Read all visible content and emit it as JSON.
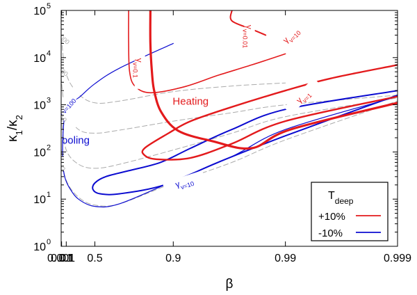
{
  "chart_data": {
    "type": "line",
    "title": "",
    "xlabel": "β",
    "ylabel": "κ1/κ2",
    "x_scale": "log(1-β)",
    "y_scale": "log",
    "xlim": [
      0.001,
      0.999
    ],
    "ylim": [
      1,
      100000
    ],
    "grid": false,
    "x_ticks": [
      {
        "value": 0.001,
        "label": "0.001"
      },
      {
        "value": 0.01,
        "label": "0.01"
      },
      {
        "value": 0.1,
        "label": "0.1"
      },
      {
        "value": 0.5,
        "label": "0.5"
      },
      {
        "value": 0.9,
        "label": "0.9"
      },
      {
        "value": 0.99,
        "label": "0.99"
      },
      {
        "value": 0.999,
        "label": "0.999"
      }
    ],
    "y_ticks": [
      {
        "value": 1,
        "mant": "10",
        "exp": "0"
      },
      {
        "value": 10,
        "mant": "10",
        "exp": "1"
      },
      {
        "value": 100,
        "mant": "10",
        "exp": "2"
      },
      {
        "value": 1000,
        "mant": "10",
        "exp": "3"
      },
      {
        "value": 10000,
        "mant": "10",
        "exp": "4"
      },
      {
        "value": 100000,
        "mant": "10",
        "exp": "5"
      }
    ],
    "legend": {
      "title": "T",
      "title_sub": "deep",
      "placement": "bottom-right",
      "entries": [
        {
          "label": "+10%",
          "color": "#e31a1c"
        },
        {
          "label": "-10%",
          "color": "#0b0bd0"
        }
      ]
    },
    "region_labels": [
      {
        "text": "Heating",
        "color": "#e31a1c",
        "x": 0.93,
        "y": 1000
      },
      {
        "text": "Cooling",
        "color": "#0b0bd0",
        "x": 0.2,
        "y": 150
      }
    ],
    "series": [
      {
        "name": "γp=1000",
        "group": "gamma_p",
        "color": "#aaaaaa",
        "dash": true,
        "label": "γ_p=1000",
        "label_at": [
          0.0045,
          35000
        ],
        "points": [
          [
            0.001,
            80000
          ],
          [
            0.01,
            25000
          ],
          [
            0.1,
            4500
          ],
          [
            0.3,
            1700
          ],
          [
            0.5,
            1100
          ],
          [
            0.7,
            1200
          ],
          [
            0.9,
            1900
          ],
          [
            0.97,
            2500
          ],
          [
            0.99,
            2900
          ]
        ]
      },
      {
        "name": "γp=100",
        "group": "gamma_p",
        "color": "#aaaaaa",
        "dash": true,
        "label": "γ_p=100",
        "label_at": [
          0.0018,
          7000
        ],
        "points": [
          [
            0.001,
            12000
          ],
          [
            0.01,
            3000
          ],
          [
            0.1,
            700
          ],
          [
            0.3,
            300
          ],
          [
            0.5,
            250
          ],
          [
            0.7,
            290
          ],
          [
            0.9,
            450
          ],
          [
            0.97,
            680
          ],
          [
            0.99,
            1000
          ],
          [
            0.999,
            1600
          ]
        ]
      },
      {
        "name": "γp=10",
        "group": "gamma_p",
        "color": "#aaaaaa",
        "dash": true,
        "label": "γ_p=10",
        "label_at": [
          0.0018,
          700
        ],
        "points": [
          [
            0.001,
            2500
          ],
          [
            0.01,
            500
          ],
          [
            0.1,
            110
          ],
          [
            0.3,
            55
          ],
          [
            0.5,
            45
          ],
          [
            0.7,
            55
          ],
          [
            0.9,
            110
          ],
          [
            0.97,
            250
          ],
          [
            0.99,
            560
          ],
          [
            0.999,
            1400
          ]
        ]
      },
      {
        "name": "γp=2",
        "group": "gamma_p",
        "color": "#aaaaaa",
        "dash": true,
        "label": "γ_p=2",
        "label_at": [
          0.0018,
          60
        ],
        "points": [
          [
            0.001,
            500
          ],
          [
            0.01,
            90
          ],
          [
            0.1,
            25
          ],
          [
            0.3,
            11
          ],
          [
            0.5,
            7.5
          ],
          [
            0.7,
            8
          ],
          [
            0.9,
            22
          ],
          [
            0.97,
            60
          ],
          [
            0.99,
            180
          ],
          [
            0.999,
            1200
          ]
        ]
      },
      {
        "name": "γv=100 (-10%)",
        "group": "minus10",
        "color": "#0b0bd0",
        "width": 1.2,
        "label": "γ_v=100",
        "label_at": [
          0.07,
          1000
        ],
        "points": [
          [
            0.9,
            20000
          ],
          [
            0.7,
            6000
          ],
          [
            0.5,
            2800
          ],
          [
            0.3,
            1400
          ],
          [
            0.15,
            1100
          ],
          [
            0.07,
            600
          ],
          [
            0.035,
            200
          ],
          [
            0.03,
            100
          ],
          [
            0.04,
            50
          ],
          [
            0.07,
            30
          ],
          [
            0.15,
            18
          ],
          [
            0.3,
            10
          ],
          [
            0.5,
            7
          ],
          [
            0.7,
            8
          ],
          [
            0.9,
            24
          ],
          [
            0.97,
            80
          ],
          [
            0.99,
            300
          ],
          [
            0.999,
            1500
          ]
        ]
      },
      {
        "name": "γv=10 (-10%)",
        "group": "minus10",
        "color": "#0b0bd0",
        "width": 2.0,
        "label": "γ_v=10",
        "label_at": [
          0.92,
          23
        ],
        "points": [
          [
            0.999,
            2000
          ],
          [
            0.99,
            800
          ],
          [
            0.97,
            300
          ],
          [
            0.93,
            120
          ],
          [
            0.87,
            60
          ],
          [
            0.75,
            40
          ],
          [
            0.6,
            30
          ],
          [
            0.5,
            22
          ],
          [
            0.48,
            16
          ],
          [
            0.55,
            13
          ],
          [
            0.7,
            13
          ],
          [
            0.88,
            20
          ],
          [
            0.96,
            60
          ],
          [
            0.99,
            220
          ],
          [
            0.999,
            1600
          ]
        ]
      },
      {
        "name": "γv=0.1 (+10%)",
        "group": "plus10",
        "color": "#e31a1c",
        "width": 1.6,
        "label": "γ_v=0.1",
        "label_at": [
          0.8,
          6000
        ],
        "points": [
          [
            0.75,
            100000
          ],
          [
            0.75,
            20000
          ],
          [
            0.755,
            5000
          ],
          [
            0.78,
            2500
          ],
          [
            0.84,
            1800
          ],
          [
            0.92,
            2400
          ],
          [
            0.96,
            4200
          ],
          [
            0.98,
            7000
          ],
          [
            0.99,
            12000
          ]
        ]
      },
      {
        "name": "γv=0.01 (+10%)",
        "group": "plus10",
        "color": "#e31a1c",
        "width": 3.2,
        "label": "γ_v=0.01",
        "label_at": [
          0.979,
          28000
        ],
        "points": [
          [
            0.84,
            100000
          ],
          [
            0.84,
            20000
          ],
          [
            0.845,
            5000
          ],
          [
            0.852,
            2000
          ],
          [
            0.872,
            700
          ],
          [
            0.91,
            280
          ],
          [
            0.955,
            170
          ],
          [
            0.98,
            120
          ],
          [
            0.991,
            300
          ],
          [
            0.999,
            1100
          ]
        ]
      },
      {
        "name": "γv=10 (+10%)",
        "group": "plus10",
        "color": "#e31a1c",
        "width": 2.0,
        "label": "γ_v=10",
        "label_at": [
          0.991,
          30000
        ],
        "points": [
          [
            0.97,
            100000
          ],
          [
            0.97,
            60000
          ],
          [
            0.98,
            40000
          ],
          [
            0.985,
            30000
          ]
        ]
      },
      {
        "name": "γv=1 (+10%)",
        "group": "plus10",
        "color": "#e31a1c",
        "width": 2.4,
        "label": "γ_v=1",
        "label_at": [
          0.993,
          1500
        ],
        "points": [
          [
            0.999,
            7000
          ],
          [
            0.996,
            3600
          ],
          [
            0.99,
            2000
          ],
          [
            0.97,
            900
          ],
          [
            0.93,
            450
          ],
          [
            0.89,
            250
          ],
          [
            0.82,
            120
          ],
          [
            0.82,
            85
          ],
          [
            0.86,
            70
          ],
          [
            0.93,
            75
          ],
          [
            0.97,
            150
          ],
          [
            0.99,
            450
          ],
          [
            0.999,
            1500
          ]
        ]
      }
    ]
  }
}
